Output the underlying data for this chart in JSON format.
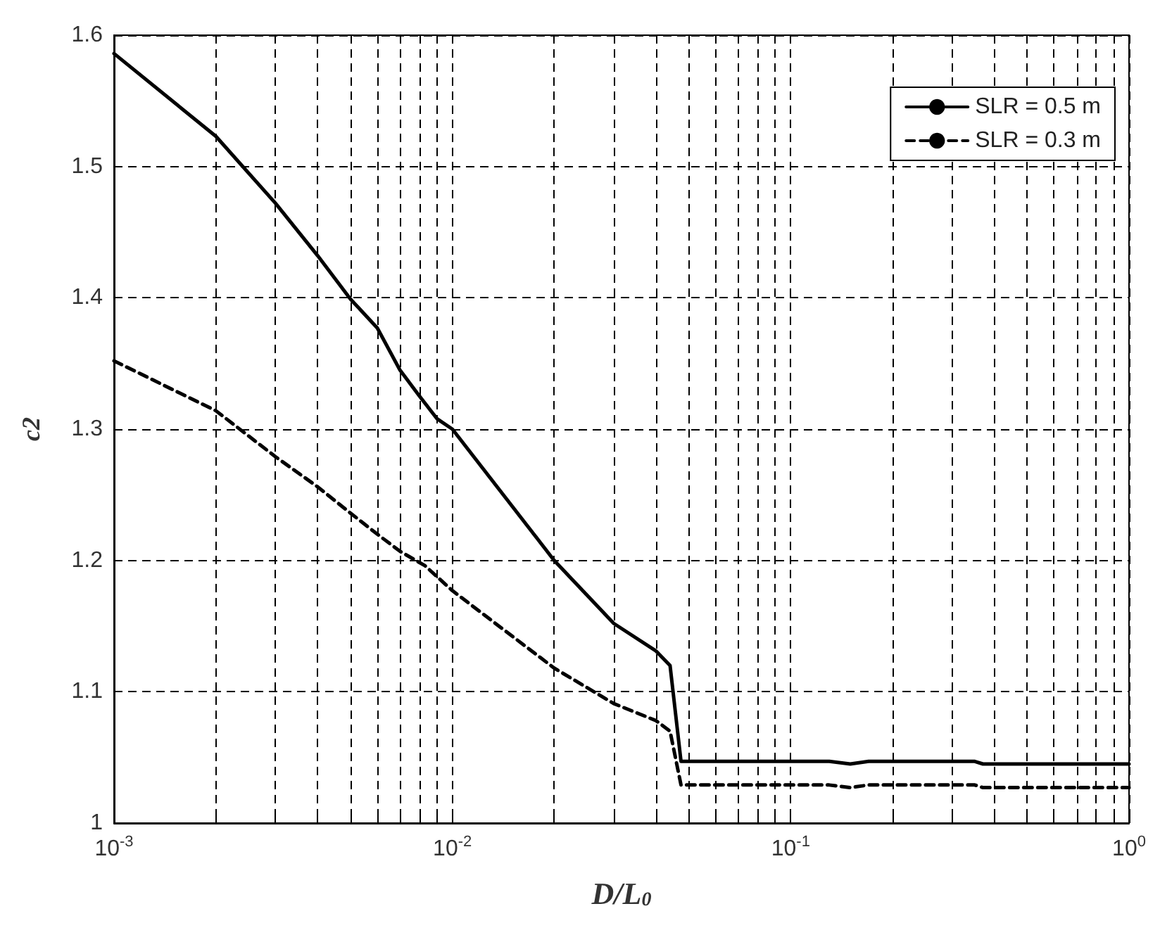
{
  "chart_data": {
    "type": "line",
    "xlabel": "D/L$_{0}$",
    "ylabel": "c2",
    "log": "x",
    "grid": true,
    "legend": "top right",
    "marker": "none",
    "xlim": [
      0.001,
      1
    ],
    "xticks": [
      {
        "value": 0.001,
        "label": "10$^{-3}$"
      },
      {
        "value": 0.002,
        "label": null
      },
      {
        "value": 0.003,
        "label": null
      },
      {
        "value": 0.004,
        "label": null
      },
      {
        "value": 0.005,
        "label": null
      },
      {
        "value": 0.006,
        "label": null
      },
      {
        "value": 0.007,
        "label": null
      },
      {
        "value": 0.008,
        "label": null
      },
      {
        "value": 0.009,
        "label": null
      },
      {
        "value": 0.01,
        "label": "10$^{-2}$"
      },
      {
        "value": 0.02,
        "label": null
      },
      {
        "value": 0.03,
        "label": null
      },
      {
        "value": 0.04,
        "label": null
      },
      {
        "value": 0.05,
        "label": null
      },
      {
        "value": 0.06,
        "label": null
      },
      {
        "value": 0.07,
        "label": null
      },
      {
        "value": 0.08,
        "label": null
      },
      {
        "value": 0.09,
        "label": null
      },
      {
        "value": 0.1,
        "label": "10$^{-1}$"
      },
      {
        "value": 0.2,
        "label": null
      },
      {
        "value": 0.3,
        "label": null
      },
      {
        "value": 0.4,
        "label": null
      },
      {
        "value": 0.5,
        "label": null
      },
      {
        "value": 0.6,
        "label": null
      },
      {
        "value": 0.7,
        "label": null
      },
      {
        "value": 0.8,
        "label": null
      },
      {
        "value": 0.9,
        "label": null
      },
      {
        "value": 1,
        "label": "10$^{0}$"
      }
    ],
    "ylim": [
      1,
      1.6
    ],
    "yticks": [
      1,
      1.1,
      1.2,
      1.3,
      1.4,
      1.5,
      1.6
    ],
    "series": [
      {
        "name": "SLR = 0.5 m",
        "color": "#000000",
        "line_style": "solid",
        "x": [
          0.001,
          0.002,
          0.003,
          0.004,
          0.005,
          0.006,
          0.007,
          0.008,
          0.009,
          0.01,
          0.02,
          0.03,
          0.04,
          0.044,
          0.0474,
          0.13,
          0.15,
          0.17,
          0.35,
          0.37,
          1
        ],
        "values": [
          1.586,
          1.523,
          1.472,
          1.432,
          1.399,
          1.377,
          1.345,
          1.325,
          1.308,
          1.3,
          1.2,
          1.152,
          1.131,
          1.12,
          1.047,
          1.047,
          1.045,
          1.047,
          1.047,
          1.045,
          1.045
        ]
      },
      {
        "name": "SLR = 0.3 m",
        "color": "#000000",
        "line_style": "dashed",
        "x": [
          0.001,
          0.002,
          0.003,
          0.004,
          0.005,
          0.006,
          0.007,
          0.0083,
          0.01,
          0.02,
          0.03,
          0.04,
          0.044,
          0.0474,
          0.13,
          0.15,
          0.17,
          0.35,
          0.37,
          1
        ],
        "values": [
          1.352,
          1.314,
          1.279,
          1.256,
          1.236,
          1.22,
          1.207,
          1.196,
          1.177,
          1.118,
          1.091,
          1.078,
          1.07,
          1.029,
          1.029,
          1.027,
          1.029,
          1.029,
          1.027,
          1.027
        ]
      }
    ]
  }
}
